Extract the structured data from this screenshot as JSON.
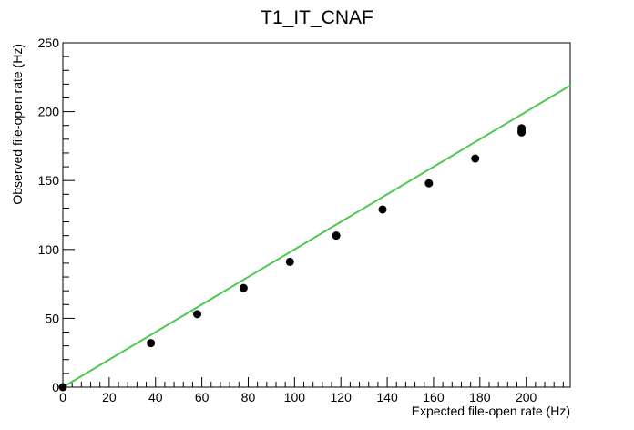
{
  "chart_data": {
    "type": "scatter",
    "title": "T1_IT_CNAF",
    "xlabel": "Expected file-open rate (Hz)",
    "ylabel": "Observed file-open rate (Hz)",
    "xlim": [
      0,
      219
    ],
    "ylim": [
      0,
      250
    ],
    "x_ticks": [
      0,
      20,
      40,
      60,
      80,
      100,
      120,
      140,
      160,
      180,
      200
    ],
    "y_ticks": [
      0,
      50,
      100,
      150,
      200,
      250
    ],
    "grid": false,
    "legend": "none",
    "points": [
      {
        "x": 0,
        "y": 0
      },
      {
        "x": 38,
        "y": 32
      },
      {
        "x": 58,
        "y": 53
      },
      {
        "x": 78,
        "y": 72
      },
      {
        "x": 98,
        "y": 91
      },
      {
        "x": 118,
        "y": 110
      },
      {
        "x": 138,
        "y": 129
      },
      {
        "x": 158,
        "y": 148
      },
      {
        "x": 178,
        "y": 166
      },
      {
        "x": 198,
        "y": 188
      },
      {
        "x": 198,
        "y": 186
      },
      {
        "x": 198,
        "y": 185
      }
    ],
    "reference_line": {
      "x": [
        0,
        219
      ],
      "y": [
        0,
        219
      ],
      "color": "#4fc84f"
    },
    "marker_color": "#000000"
  }
}
